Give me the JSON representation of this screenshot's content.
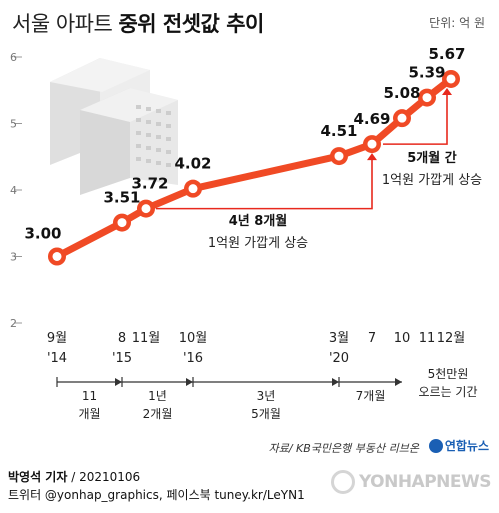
{
  "header": {
    "title_light": "서울 아파트",
    "title_bold": "중위 전셋값 추이",
    "unit": "단위: 억 원"
  },
  "chart_data": {
    "type": "line",
    "title": "서울 아파트 중위 전셋값 추이",
    "ylabel": "",
    "unit": "단위: 억 원",
    "ylim": [
      2,
      6
    ],
    "yticks": [
      "2",
      "3",
      "4",
      "5",
      "6"
    ],
    "x": [
      {
        "month": "9월",
        "year": "'14"
      },
      {
        "month": "8",
        "year": "'15"
      },
      {
        "month": "11월",
        "year": ""
      },
      {
        "month": "10월",
        "year": "'16"
      },
      {
        "month": "3월",
        "year": "'20"
      },
      {
        "month": "7",
        "year": ""
      },
      {
        "month": "10",
        "year": ""
      },
      {
        "month": "11",
        "year": ""
      },
      {
        "month": "12월",
        "year": ""
      }
    ],
    "values": [
      3.0,
      3.51,
      3.72,
      4.02,
      4.51,
      4.69,
      5.08,
      5.39,
      5.67
    ],
    "value_labels": [
      "3.00",
      "3.51",
      "3.72",
      "4.02",
      "4.51",
      "4.69",
      "5.08",
      "5.39",
      "5.67"
    ],
    "line_color": "#f04a25",
    "marker_fill": "#ffffff",
    "grid": false,
    "annotations": [
      {
        "bold": "4년 8개월",
        "text": "1억원 가깝게 상승"
      },
      {
        "bold": "5개월 간",
        "text": "1억원 가깝게 상승"
      }
    ],
    "intervals": [
      {
        "line1": "11",
        "line2": "개월"
      },
      {
        "line1": "1년",
        "line2": "2개월"
      },
      {
        "line1": "3년",
        "line2": "5개월"
      },
      {
        "line1": "7개월",
        "line2": ""
      }
    ],
    "interval_note": {
      "line1": "5천만원",
      "line2": "오르는 기간"
    }
  },
  "footer": {
    "credit": "자료/ KB국민은행 부동산 리브온",
    "logo": "연합뉴스",
    "author": "박영석 기자",
    "date": "20210106",
    "social": "트위터 @yonhap_graphics, 페이스북 tuney.kr/LeYN1",
    "watermark": "YONHAPNEWS"
  }
}
